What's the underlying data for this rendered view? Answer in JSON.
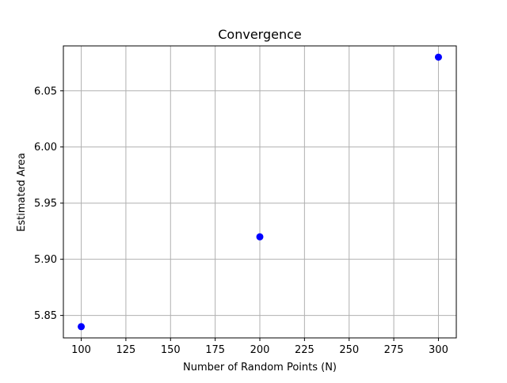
{
  "chart_data": {
    "type": "scatter",
    "title": "Convergence",
    "xlabel": "Number of Random Points (N)",
    "ylabel": "Estimated Area",
    "xlim": [
      90,
      310
    ],
    "ylim": [
      5.83,
      6.09
    ],
    "xticks": [
      100,
      125,
      150,
      175,
      200,
      225,
      250,
      275,
      300
    ],
    "xtick_labels": [
      "100",
      "125",
      "150",
      "175",
      "200",
      "225",
      "250",
      "275",
      "300"
    ],
    "yticks": [
      5.85,
      5.9,
      5.95,
      6.0,
      6.05
    ],
    "ytick_labels": [
      "5.85",
      "5.90",
      "5.95",
      "6.00",
      "6.05"
    ],
    "grid": true,
    "series": [
      {
        "x": [
          100,
          200,
          300
        ],
        "y": [
          5.84,
          5.92,
          6.08
        ],
        "color": "#0000ff",
        "marker": "circle"
      }
    ]
  }
}
